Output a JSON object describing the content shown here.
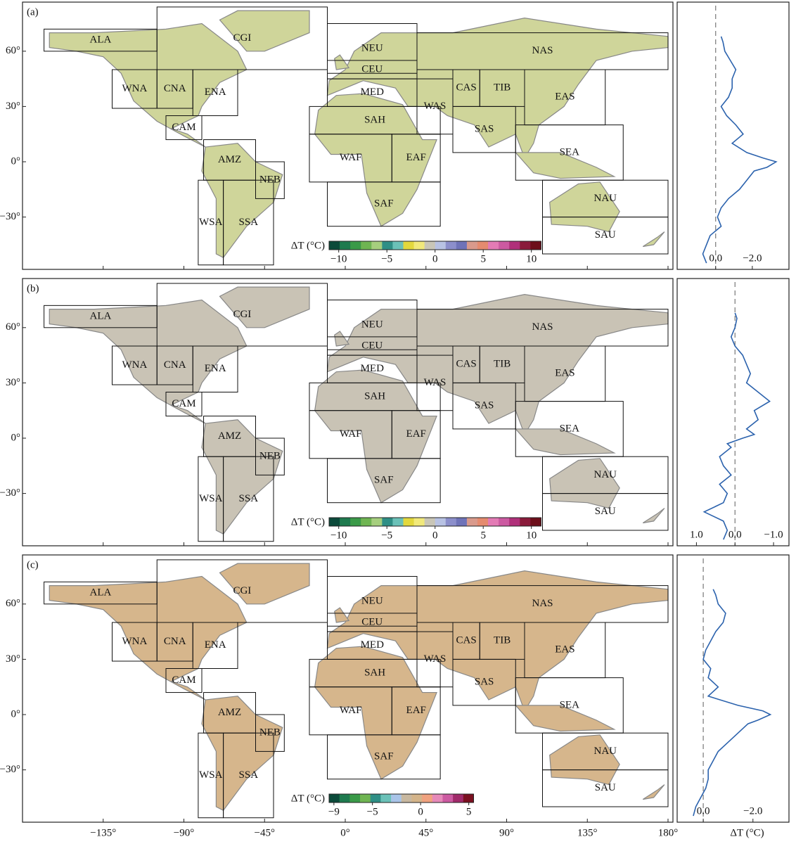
{
  "regions": [
    "ALA",
    "CGI",
    "WNA",
    "CNA",
    "ENA",
    "CAM",
    "AMZ",
    "NEB",
    "WSA",
    "SSA",
    "NEU",
    "CEU",
    "MED",
    "SAH",
    "WAF",
    "EAF",
    "SAF",
    "WAS",
    "NAS",
    "CAS",
    "TIB",
    "EAS",
    "SAS",
    "SEA",
    "NAU",
    "SAU"
  ],
  "lon_ticks": [
    {
      "value": -135,
      "label": "−135°"
    },
    {
      "value": -90,
      "label": "−90°"
    },
    {
      "value": -45,
      "label": "−45°"
    },
    {
      "value": 0,
      "label": "0°"
    },
    {
      "value": 45,
      "label": "45°"
    },
    {
      "value": 90,
      "label": "90°"
    },
    {
      "value": 135,
      "label": "135°"
    },
    {
      "value": 180,
      "label": "180°"
    }
  ],
  "lat_ticks": [
    {
      "value": 60,
      "label": "60°"
    },
    {
      "value": 30,
      "label": "30°"
    },
    {
      "value": 0,
      "label": "0°"
    },
    {
      "value": -30,
      "label": "−30°"
    }
  ],
  "profile_lat": [
    68,
    65,
    60,
    55,
    50,
    45,
    40,
    35,
    30,
    25,
    20,
    15,
    10,
    5,
    2,
    0,
    -3,
    -5,
    -10,
    -15,
    -20,
    -25,
    -30,
    -35,
    -40,
    -45,
    -50,
    -55
  ],
  "profile_xlabel": "ΔT (°C)",
  "line_color": "#2b62ad",
  "panels": [
    {
      "label": "(a)",
      "land_color": "#cfd59a",
      "colorbar": {
        "label": "ΔT (°C)",
        "lim": [
          -11,
          11
        ],
        "ticks": [
          {
            "value": -10,
            "label": "−10"
          },
          {
            "value": -5,
            "label": "−5"
          },
          0,
          5,
          10
        ],
        "colors": [
          "#0b4a3a",
          "#1e7a4e",
          "#3a9a48",
          "#6fb552",
          "#a6cf7e",
          "#2f8f86",
          "#6bc1b8",
          "#e3d83d",
          "#f1e97b",
          "#c9c6b7",
          "#b8c2e3",
          "#8c8fcb",
          "#6f73b8",
          "#d99a8c",
          "#e58b6f",
          "#e37bb5",
          "#cc5aa1",
          "#b0307a",
          "#8a1b3b",
          "#6d0f1a"
        ]
      },
      "profile": {
        "xlim": [
          2.1,
          -4.0
        ],
        "reference_line": 0,
        "xticks": [
          {
            "value": 0,
            "label": "0.0"
          },
          {
            "value": -2,
            "label": "−2.0"
          }
        ],
        "values": [
          -0.3,
          -0.4,
          -0.5,
          -0.8,
          -1.1,
          -0.9,
          -0.9,
          -0.7,
          -0.3,
          -0.6,
          -1.1,
          -1.5,
          -0.9,
          -1.7,
          -2.6,
          -3.3,
          -2.8,
          -2.1,
          -1.7,
          -1.3,
          -0.7,
          -0.3,
          -0.1,
          -0.3,
          0.3,
          0.5,
          0.7,
          0.5
        ]
      }
    },
    {
      "label": "(b)",
      "land_color": "#c9c3b5",
      "colorbar": {
        "label": "ΔT (°C)",
        "lim": [
          -11,
          11
        ],
        "ticks": [
          {
            "value": -10,
            "label": "−10"
          },
          {
            "value": -5,
            "label": "−5"
          },
          0,
          5,
          10
        ],
        "colors": [
          "#0b4a3a",
          "#1e7a4e",
          "#3a9a48",
          "#6fb552",
          "#a6cf7e",
          "#2f8f86",
          "#6bc1b8",
          "#e3d83d",
          "#f1e97b",
          "#c9c6b7",
          "#b8c2e3",
          "#8c8fcb",
          "#6f73b8",
          "#d99a8c",
          "#e58b6f",
          "#e37bb5",
          "#cc5aa1",
          "#b0307a",
          "#8a1b3b",
          "#6d0f1a"
        ]
      },
      "profile": {
        "xlim": [
          1.5,
          -1.4
        ],
        "reference_line": 0,
        "xticks": [
          {
            "value": 1,
            "label": "1.0"
          },
          {
            "value": 0,
            "label": "0.0"
          },
          {
            "value": -1,
            "label": "−1.0"
          }
        ],
        "values": [
          0.0,
          -0.05,
          0.0,
          0.1,
          0.0,
          -0.2,
          -0.3,
          -0.4,
          -0.3,
          -0.6,
          -0.9,
          -0.5,
          -0.6,
          -0.3,
          -0.5,
          -0.2,
          0.2,
          0.1,
          0.4,
          0.3,
          0.1,
          0.4,
          0.2,
          0.3,
          0.8,
          0.3,
          0.2,
          0.3
        ]
      }
    },
    {
      "label": "(c)",
      "land_color": "#d6b68c",
      "colorbar": {
        "label": "ΔT (°C)",
        "lim": [
          -9.5,
          5.5
        ],
        "ticks": [
          {
            "value": -9,
            "label": "−9"
          },
          {
            "value": -5,
            "label": "−5"
          },
          0,
          5
        ],
        "colors": [
          "#0b4a3a",
          "#1e7a4e",
          "#3a9a48",
          "#6fb552",
          "#2f8f86",
          "#6bc1b8",
          "#a9c4e8",
          "#c8b8a0",
          "#d4b48a",
          "#f0a27f",
          "#e68ab9",
          "#cc5aa1",
          "#a02a6a",
          "#7a1020"
        ]
      },
      "profile": {
        "xlim": [
          1.05,
          -3.45
        ],
        "reference_line": 0,
        "xticks": [
          {
            "value": 0,
            "label": "0.0"
          },
          {
            "value": -2,
            "label": "−2.0"
          }
        ],
        "values": [
          -0.4,
          -0.5,
          -0.6,
          -0.9,
          -0.8,
          -0.5,
          -0.3,
          -0.1,
          0.0,
          -0.3,
          -0.2,
          -0.6,
          -0.2,
          -1.4,
          -2.4,
          -2.7,
          -2.2,
          -1.8,
          -1.4,
          -1.0,
          -0.6,
          -0.4,
          -0.2,
          -0.2,
          -0.1,
          0.1,
          0.3,
          0.4
        ]
      }
    }
  ]
}
